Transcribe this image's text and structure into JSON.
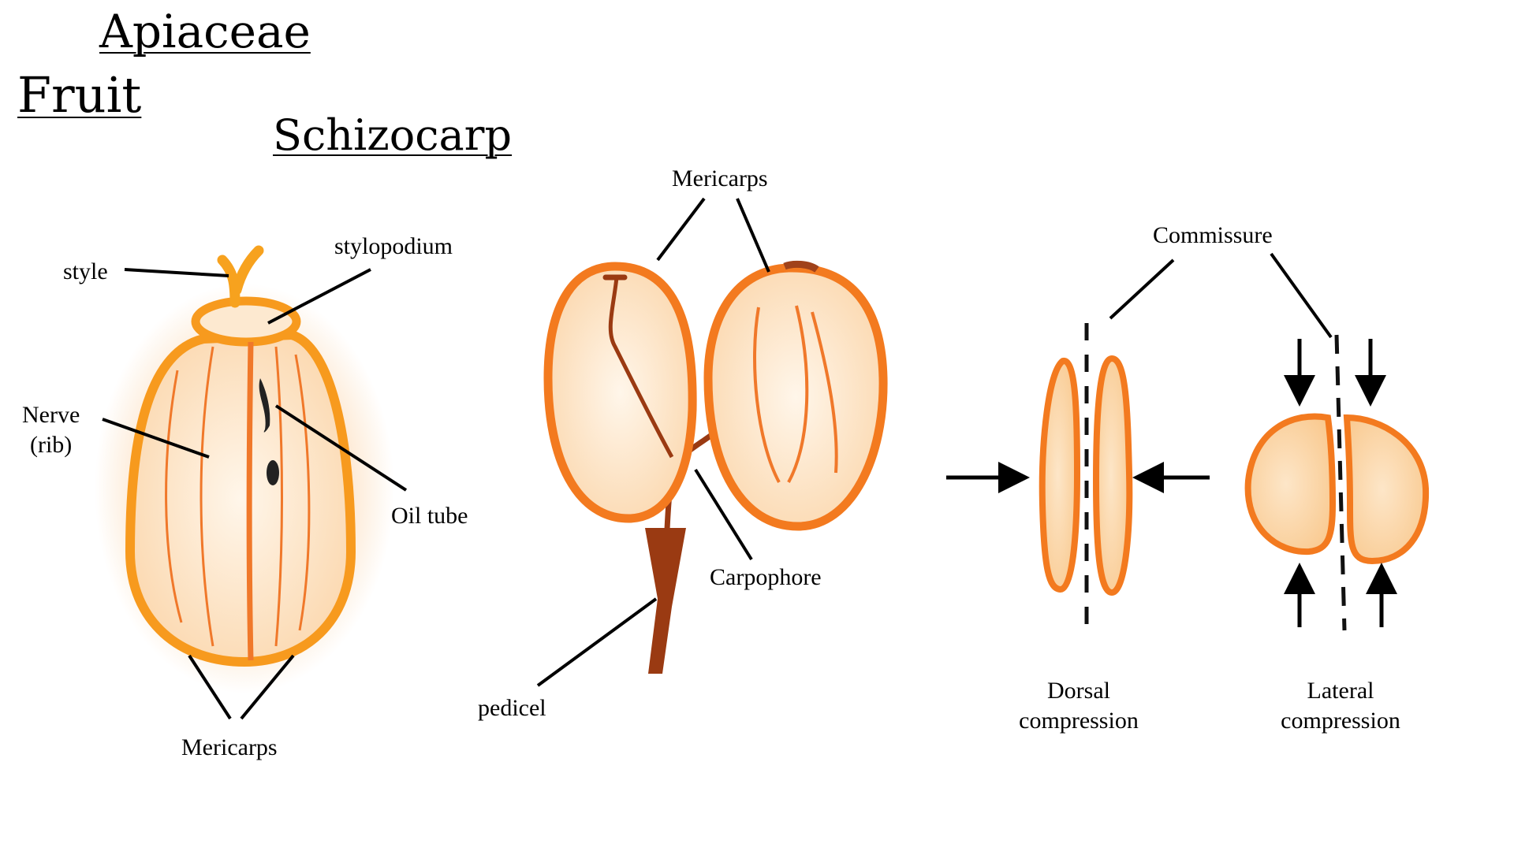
{
  "titles": {
    "family": "Apiaceae",
    "organ": "Fruit",
    "type": "Schizocarp"
  },
  "labels": {
    "style": "style",
    "stylopodium": "stylopodium",
    "nerve_line1": "Nerve",
    "nerve_line2": "(rib)",
    "oil_tube": "Oil tube",
    "mericarps_left": "Mericarps",
    "mericarps_top": "Mericarps",
    "carpophore": "Carpophore",
    "pedicel": "pedicel",
    "commissure": "Commissure",
    "dorsal_line1": "Dorsal",
    "dorsal_line2": "compression",
    "lateral_line1": "Lateral",
    "lateral_line2": "compression"
  },
  "colors": {
    "outline_orange": "#f37a1f",
    "fill_peach": "#fde3c3",
    "rib_orange": "#f0782a",
    "pedicel_brown": "#9a3a12",
    "ink": "#000000"
  },
  "icons": [
    "arrow-right-icon",
    "arrow-left-icon",
    "arrow-down-icon",
    "arrow-up-icon"
  ]
}
